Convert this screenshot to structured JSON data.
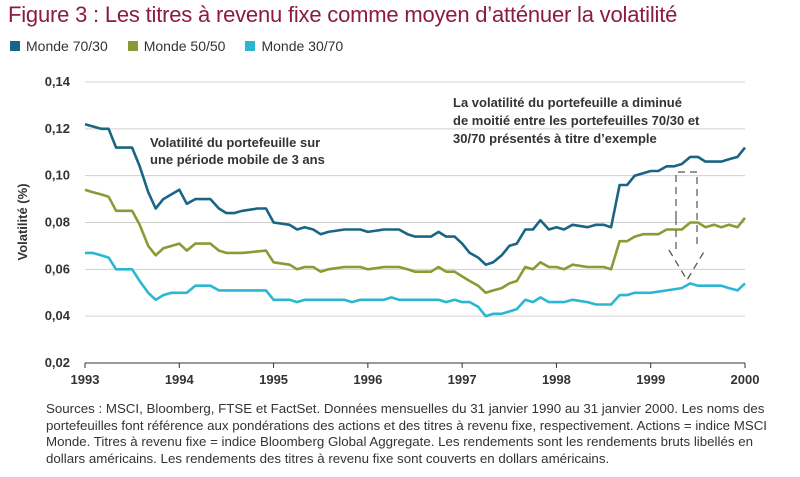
{
  "title": "Figure 3 : Les titres à revenu fixe comme moyen d’atténuer la volatilité",
  "legend": [
    {
      "label": "Monde 70/30",
      "color": "#1a6585"
    },
    {
      "label": "Monde 50/50",
      "color": "#8a9a35"
    },
    {
      "label": "Monde 30/70",
      "color": "#2bb7d1"
    }
  ],
  "annotations": {
    "left_line1": "Volatilité du portefeuille sur",
    "left_line2": "une période mobile de 3 ans",
    "right_line1": "La volatilité du portefeuille a diminué",
    "right_line2": "de moitié entre les portefeuilles 70/30 et",
    "right_line3": "30/70 présentés à titre d’exemple"
  },
  "footnote": "Sources : MSCI, Bloomberg, FTSE et FactSet. Données mensuelles du 31 janvier 1990 au 31 janvier 2000. Les noms des portefeuilles font référence aux pondérations des actions et des titres à revenu fixe, respectivement. Actions = indice MSCI Monde. Titres à revenu fixe = indice Bloomberg Global Aggregate. Les rendements sont les rendements bruts libellés en dollars américains. Les rendements des titres à revenu fixe sont couverts en dollars américains.",
  "chart_data": {
    "type": "line",
    "title": "Figure 3 : Les titres à revenu fixe comme moyen d’atténuer la volatilité",
    "xlabel": "",
    "ylabel": "Volatilité (%)",
    "xlim": [
      1993,
      2000
    ],
    "ylim": [
      0.02,
      0.14
    ],
    "x_ticks": [
      "1993",
      "1994",
      "1995",
      "1996",
      "1997",
      "1998",
      "1999",
      "2000"
    ],
    "y_ticks": [
      "0,02",
      "0,04",
      "0,06",
      "0,08",
      "0,10",
      "0,12",
      "0,14"
    ],
    "y_tick_values": [
      0.02,
      0.04,
      0.06,
      0.08,
      0.1,
      0.12,
      0.14
    ],
    "grid": "horizontal",
    "legend_position": "top-left",
    "series": [
      {
        "name": "Monde 70/30",
        "color": "#1a6585",
        "points": [
          [
            1993.0,
            0.122
          ],
          [
            1993.17,
            0.12
          ],
          [
            1993.25,
            0.12
          ],
          [
            1993.33,
            0.112
          ],
          [
            1993.5,
            0.112
          ],
          [
            1993.58,
            0.104
          ],
          [
            1993.67,
            0.093
          ],
          [
            1993.75,
            0.086
          ],
          [
            1993.83,
            0.09
          ],
          [
            1994.0,
            0.094
          ],
          [
            1994.08,
            0.088
          ],
          [
            1994.17,
            0.09
          ],
          [
            1994.33,
            0.09
          ],
          [
            1994.42,
            0.086
          ],
          [
            1994.5,
            0.084
          ],
          [
            1994.58,
            0.084
          ],
          [
            1994.67,
            0.085
          ],
          [
            1994.83,
            0.086
          ],
          [
            1994.92,
            0.086
          ],
          [
            1995.0,
            0.08
          ],
          [
            1995.17,
            0.079
          ],
          [
            1995.25,
            0.077
          ],
          [
            1995.33,
            0.078
          ],
          [
            1995.42,
            0.077
          ],
          [
            1995.5,
            0.075
          ],
          [
            1995.58,
            0.076
          ],
          [
            1995.75,
            0.077
          ],
          [
            1995.92,
            0.077
          ],
          [
            1996.0,
            0.076
          ],
          [
            1996.17,
            0.077
          ],
          [
            1996.33,
            0.077
          ],
          [
            1996.42,
            0.075
          ],
          [
            1996.5,
            0.074
          ],
          [
            1996.67,
            0.074
          ],
          [
            1996.75,
            0.076
          ],
          [
            1996.83,
            0.074
          ],
          [
            1996.92,
            0.074
          ],
          [
            1997.0,
            0.071
          ],
          [
            1997.08,
            0.067
          ],
          [
            1997.17,
            0.065
          ],
          [
            1997.25,
            0.062
          ],
          [
            1997.33,
            0.063
          ],
          [
            1997.42,
            0.066
          ],
          [
            1997.5,
            0.07
          ],
          [
            1997.58,
            0.071
          ],
          [
            1997.67,
            0.077
          ],
          [
            1997.75,
            0.077
          ],
          [
            1997.83,
            0.081
          ],
          [
            1997.92,
            0.077
          ],
          [
            1998.0,
            0.078
          ],
          [
            1998.08,
            0.077
          ],
          [
            1998.17,
            0.079
          ],
          [
            1998.33,
            0.078
          ],
          [
            1998.42,
            0.079
          ],
          [
            1998.5,
            0.079
          ],
          [
            1998.58,
            0.078
          ],
          [
            1998.67,
            0.096
          ],
          [
            1998.75,
            0.096
          ],
          [
            1998.83,
            0.1
          ],
          [
            1998.92,
            0.101
          ],
          [
            1999.0,
            0.102
          ],
          [
            1999.08,
            0.102
          ],
          [
            1999.17,
            0.104
          ],
          [
            1999.25,
            0.104
          ],
          [
            1999.33,
            0.105
          ],
          [
            1999.42,
            0.108
          ],
          [
            1999.5,
            0.108
          ],
          [
            1999.58,
            0.106
          ],
          [
            1999.67,
            0.106
          ],
          [
            1999.75,
            0.106
          ],
          [
            1999.83,
            0.107
          ],
          [
            1999.92,
            0.108
          ],
          [
            2000.0,
            0.112
          ]
        ]
      },
      {
        "name": "Monde 50/50",
        "color": "#8a9a35",
        "points": [
          [
            1993.0,
            0.094
          ],
          [
            1993.08,
            0.093
          ],
          [
            1993.17,
            0.092
          ],
          [
            1993.25,
            0.091
          ],
          [
            1993.33,
            0.085
          ],
          [
            1993.5,
            0.085
          ],
          [
            1993.58,
            0.079
          ],
          [
            1993.67,
            0.07
          ],
          [
            1993.75,
            0.066
          ],
          [
            1993.83,
            0.069
          ],
          [
            1993.92,
            0.07
          ],
          [
            1994.0,
            0.071
          ],
          [
            1994.08,
            0.068
          ],
          [
            1994.17,
            0.071
          ],
          [
            1994.33,
            0.071
          ],
          [
            1994.42,
            0.068
          ],
          [
            1994.5,
            0.067
          ],
          [
            1994.58,
            0.067
          ],
          [
            1994.67,
            0.067
          ],
          [
            1994.92,
            0.068
          ],
          [
            1995.0,
            0.063
          ],
          [
            1995.17,
            0.062
          ],
          [
            1995.25,
            0.06
          ],
          [
            1995.33,
            0.061
          ],
          [
            1995.42,
            0.061
          ],
          [
            1995.5,
            0.059
          ],
          [
            1995.58,
            0.06
          ],
          [
            1995.75,
            0.061
          ],
          [
            1995.92,
            0.061
          ],
          [
            1996.0,
            0.06
          ],
          [
            1996.17,
            0.061
          ],
          [
            1996.33,
            0.061
          ],
          [
            1996.42,
            0.06
          ],
          [
            1996.5,
            0.059
          ],
          [
            1996.67,
            0.059
          ],
          [
            1996.75,
            0.061
          ],
          [
            1996.83,
            0.059
          ],
          [
            1996.92,
            0.059
          ],
          [
            1997.0,
            0.057
          ],
          [
            1997.08,
            0.055
          ],
          [
            1997.17,
            0.053
          ],
          [
            1997.25,
            0.05
          ],
          [
            1997.33,
            0.051
          ],
          [
            1997.42,
            0.052
          ],
          [
            1997.5,
            0.054
          ],
          [
            1997.58,
            0.055
          ],
          [
            1997.67,
            0.061
          ],
          [
            1997.75,
            0.06
          ],
          [
            1997.83,
            0.063
          ],
          [
            1997.92,
            0.061
          ],
          [
            1998.0,
            0.061
          ],
          [
            1998.08,
            0.06
          ],
          [
            1998.17,
            0.062
          ],
          [
            1998.33,
            0.061
          ],
          [
            1998.42,
            0.061
          ],
          [
            1998.5,
            0.061
          ],
          [
            1998.58,
            0.06
          ],
          [
            1998.67,
            0.072
          ],
          [
            1998.75,
            0.072
          ],
          [
            1998.83,
            0.074
          ],
          [
            1998.92,
            0.075
          ],
          [
            1999.0,
            0.075
          ],
          [
            1999.08,
            0.075
          ],
          [
            1999.17,
            0.077
          ],
          [
            1999.33,
            0.077
          ],
          [
            1999.42,
            0.08
          ],
          [
            1999.5,
            0.08
          ],
          [
            1999.58,
            0.078
          ],
          [
            1999.67,
            0.079
          ],
          [
            1999.75,
            0.078
          ],
          [
            1999.83,
            0.079
          ],
          [
            1999.92,
            0.078
          ],
          [
            2000.0,
            0.082
          ]
        ]
      },
      {
        "name": "Monde 30/70",
        "color": "#2bb7d1",
        "points": [
          [
            1993.0,
            0.067
          ],
          [
            1993.08,
            0.067
          ],
          [
            1993.17,
            0.066
          ],
          [
            1993.25,
            0.065
          ],
          [
            1993.33,
            0.06
          ],
          [
            1993.5,
            0.06
          ],
          [
            1993.58,
            0.055
          ],
          [
            1993.67,
            0.05
          ],
          [
            1993.75,
            0.047
          ],
          [
            1993.83,
            0.049
          ],
          [
            1993.92,
            0.05
          ],
          [
            1994.0,
            0.05
          ],
          [
            1994.08,
            0.05
          ],
          [
            1994.17,
            0.053
          ],
          [
            1994.33,
            0.053
          ],
          [
            1994.42,
            0.051
          ],
          [
            1994.5,
            0.051
          ],
          [
            1994.58,
            0.051
          ],
          [
            1994.67,
            0.051
          ],
          [
            1994.92,
            0.051
          ],
          [
            1995.0,
            0.047
          ],
          [
            1995.08,
            0.047
          ],
          [
            1995.17,
            0.047
          ],
          [
            1995.25,
            0.046
          ],
          [
            1995.33,
            0.047
          ],
          [
            1995.42,
            0.047
          ],
          [
            1995.58,
            0.047
          ],
          [
            1995.75,
            0.047
          ],
          [
            1995.83,
            0.046
          ],
          [
            1995.92,
            0.047
          ],
          [
            1996.0,
            0.047
          ],
          [
            1996.17,
            0.047
          ],
          [
            1996.25,
            0.048
          ],
          [
            1996.33,
            0.047
          ],
          [
            1996.5,
            0.047
          ],
          [
            1996.67,
            0.047
          ],
          [
            1996.75,
            0.047
          ],
          [
            1996.83,
            0.046
          ],
          [
            1996.92,
            0.047
          ],
          [
            1997.0,
            0.046
          ],
          [
            1997.08,
            0.046
          ],
          [
            1997.17,
            0.044
          ],
          [
            1997.25,
            0.04
          ],
          [
            1997.33,
            0.041
          ],
          [
            1997.42,
            0.041
          ],
          [
            1997.5,
            0.042
          ],
          [
            1997.58,
            0.043
          ],
          [
            1997.67,
            0.047
          ],
          [
            1997.75,
            0.046
          ],
          [
            1997.83,
            0.048
          ],
          [
            1997.92,
            0.046
          ],
          [
            1998.0,
            0.046
          ],
          [
            1998.08,
            0.046
          ],
          [
            1998.17,
            0.047
          ],
          [
            1998.33,
            0.046
          ],
          [
            1998.42,
            0.045
          ],
          [
            1998.5,
            0.045
          ],
          [
            1998.58,
            0.045
          ],
          [
            1998.67,
            0.049
          ],
          [
            1998.75,
            0.049
          ],
          [
            1998.83,
            0.05
          ],
          [
            1998.92,
            0.05
          ],
          [
            1999.0,
            0.05
          ],
          [
            1999.17,
            0.051
          ],
          [
            1999.33,
            0.052
          ],
          [
            1999.42,
            0.054
          ],
          [
            1999.5,
            0.053
          ],
          [
            1999.58,
            0.053
          ],
          [
            1999.67,
            0.053
          ],
          [
            1999.75,
            0.053
          ],
          [
            1999.83,
            0.052
          ],
          [
            1999.92,
            0.051
          ],
          [
            2000.0,
            0.054
          ]
        ]
      }
    ]
  }
}
